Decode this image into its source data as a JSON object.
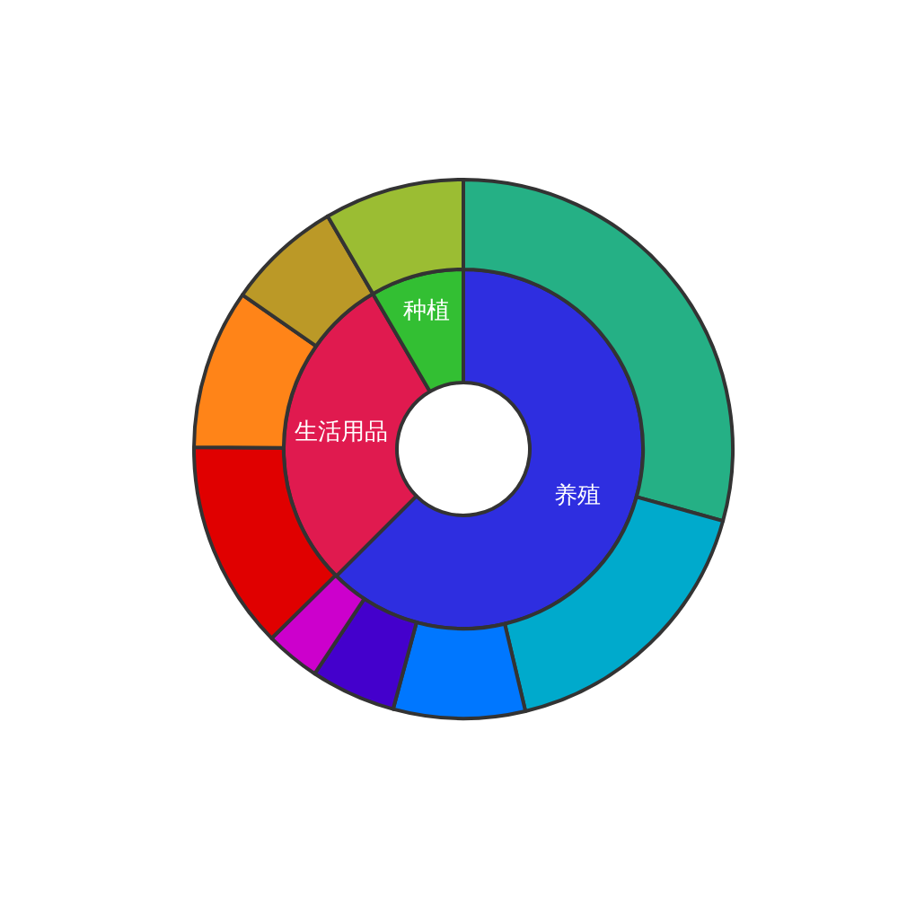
{
  "chart_data": {
    "type": "donut",
    "categories": [
      "养殖",
      "生活用品",
      "种植",
      null,
      null,
      null,
      null,
      null,
      null,
      null,
      null,
      null
    ],
    "series": [
      {
        "values": [
          62.5,
          29.1,
          8.4,
          null,
          null,
          null,
          null,
          null,
          null,
          null,
          null,
          null
        ],
        "colors": [
          "#2e2ee0",
          "#e01a4f",
          "#33bf33",
          null,
          null,
          null,
          null,
          null,
          null,
          null,
          null,
          null
        ]
      },
      {
        "values": [
          null,
          null,
          null,
          29.3,
          17.0,
          7.9,
          5.1,
          3.3,
          12.5,
          9.6,
          6.9,
          8.4
        ],
        "colors": [
          null,
          null,
          null,
          "#25b085",
          "#00aacc",
          "#0077ff",
          "#4400cc",
          "#cc00cc",
          "#e00000",
          "#ff8418",
          "#bb9927",
          "#9bbd33"
        ]
      }
    ]
  }
}
